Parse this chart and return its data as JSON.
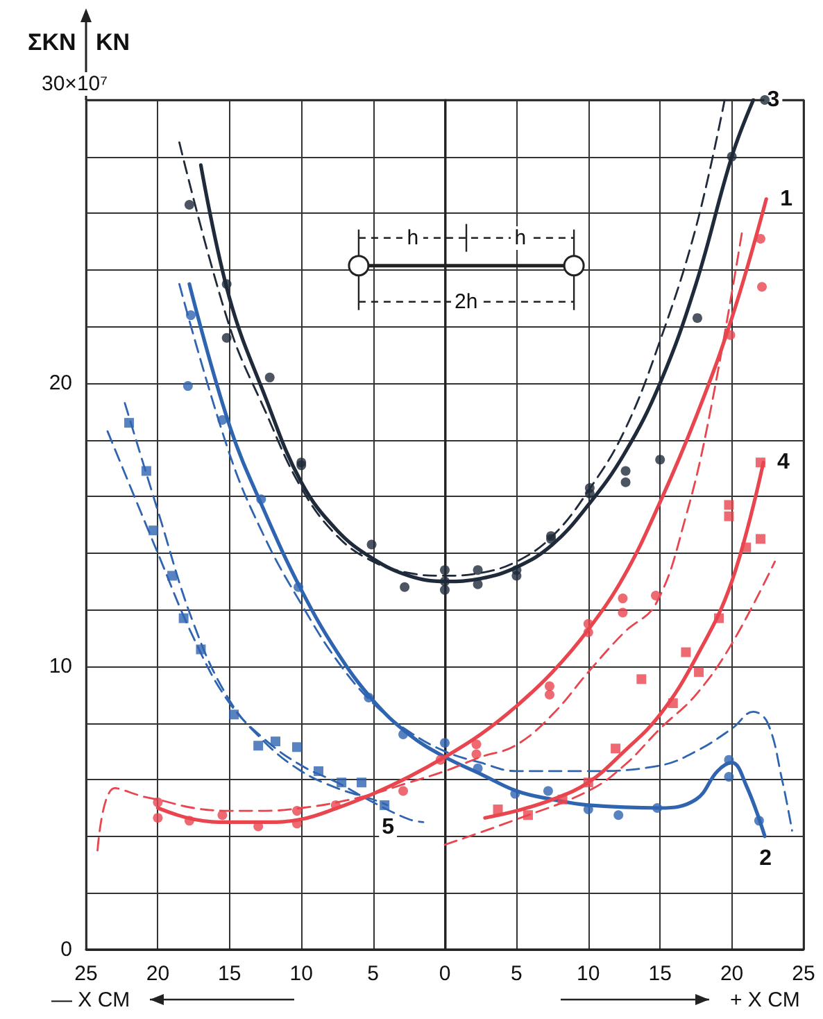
{
  "chart_data": {
    "type": "line",
    "ylabel": "ΣKN  KN",
    "xlabel": "+ X CM",
    "annotations": [
      "h",
      "h",
      "2h",
      "— X CM",
      "30×10⁷"
    ],
    "xlim": [
      -25,
      25
    ],
    "xticks": [
      {
        "value": -25,
        "label": "25"
      },
      {
        "value": -20,
        "label": "20"
      },
      {
        "value": -15,
        "label": "15"
      },
      {
        "value": -10,
        "label": "10"
      },
      {
        "value": -5,
        "label": "5"
      },
      0,
      5,
      10,
      15,
      20,
      25
    ],
    "ylim": [
      0,
      30
    ],
    "yticks": [
      0,
      {
        "value": 2,
        "label": null
      },
      {
        "value": 4,
        "label": null
      },
      {
        "value": 6,
        "label": null
      },
      {
        "value": 8,
        "label": null
      },
      10,
      {
        "value": 12,
        "label": null
      },
      {
        "value": 14,
        "label": null
      },
      {
        "value": 16,
        "label": null
      },
      {
        "value": 18,
        "label": null
      },
      20,
      {
        "value": 22,
        "label": null
      },
      {
        "value": 24,
        "label": null
      },
      {
        "value": 26,
        "label": null
      },
      {
        "value": 28,
        "label": null
      },
      {
        "value": 30,
        "label": null
      }
    ],
    "grid": true,
    "series": [
      {
        "name": "3",
        "type": "line",
        "color": "#1f2a3a",
        "line_style": "solid",
        "marker": "none",
        "x": [
          -17,
          -15,
          -12.5,
          -10,
          -7.5,
          -5,
          -2.5,
          0,
          2.5,
          5,
          7.5,
          10,
          12.5,
          15,
          17.5,
          20,
          21.5
        ],
        "values": [
          27.7,
          23,
          19.5,
          16.5,
          14.8,
          13.8,
          13.2,
          13,
          13.1,
          13.5,
          14.3,
          15.7,
          17.5,
          20,
          23.5,
          28,
          30
        ]
      },
      {
        "type": "line",
        "color": "#1f2a3a",
        "line_style": "dashed",
        "marker": "none",
        "x": [
          -18.5,
          -15,
          -12.5,
          -10,
          -7.5,
          -5,
          -2.5,
          0,
          2.5,
          5,
          7.5,
          10,
          12.5,
          15,
          17.5,
          19.5
        ],
        "values": [
          28.5,
          22,
          19,
          16.3,
          14.6,
          13.7,
          13.3,
          13.2,
          13.3,
          13.7,
          14.6,
          16.2,
          18.3,
          21.5,
          25.5,
          30
        ]
      },
      {
        "type": "scatter",
        "color": "#1f2a3a",
        "marker": "circle",
        "x": [
          -17.8,
          -15.2,
          -15.2,
          -12.2,
          -10,
          -10,
          -5.1,
          -2.8,
          0,
          0,
          0,
          2.3,
          2.3,
          5,
          5,
          7.4,
          7.4,
          10.1,
          10.1,
          12.6,
          12.6,
          15,
          17.6,
          20,
          22.3
        ],
        "values": [
          26.3,
          23.5,
          21.6,
          20.2,
          17.2,
          17.1,
          14.3,
          12.8,
          13.4,
          13,
          12.7,
          13.4,
          12.9,
          13.4,
          13.2,
          14.6,
          14.5,
          16.3,
          16.1,
          16.9,
          16.5,
          17.3,
          22.3,
          28,
          30
        ]
      },
      {
        "name": "2",
        "type": "line",
        "color": "#2f64b0",
        "line_style": "solid",
        "marker": "none",
        "x": [
          -17.8,
          -15,
          -12.5,
          -10,
          -7.5,
          -5,
          -2.5,
          0,
          2.5,
          5,
          7.5,
          10,
          15,
          17.5,
          19,
          20,
          21,
          22.3
        ],
        "values": [
          23.5,
          18.5,
          15.4,
          12.7,
          10.5,
          8.8,
          7.6,
          6.8,
          6.2,
          5.6,
          5.3,
          5.1,
          5,
          5.3,
          6.3,
          6.6,
          5.8,
          4
        ]
      },
      {
        "type": "line",
        "color": "#2f64b0",
        "line_style": "dashed",
        "marker": "none",
        "x": [
          -18.5,
          -15,
          -12.5,
          -10,
          -7.5,
          -5,
          -2.5,
          0,
          2.5,
          5,
          10,
          15,
          17.5,
          20,
          21.5,
          22.5,
          23.5,
          24.2
        ],
        "values": [
          23.5,
          17.5,
          14.5,
          12.2,
          10.2,
          8.7,
          7.7,
          7,
          6.6,
          6.3,
          6.3,
          6.5,
          7,
          7.8,
          8.4,
          8,
          6,
          4.2
        ]
      },
      {
        "type": "scatter",
        "color": "#2f64b0",
        "marker": "circle",
        "x": [
          -17.7,
          -17.9,
          -15.5,
          -12.8,
          -10.2,
          -5.3,
          -2.9,
          0,
          2.3,
          4.9,
          7.2,
          10,
          12.1,
          14.8,
          19.8,
          19.8,
          21.9
        ],
        "values": [
          22.4,
          19.9,
          18.7,
          15.9,
          12.8,
          8.9,
          7.6,
          7.3,
          6.4,
          5.5,
          5.6,
          4.95,
          4.75,
          5,
          6.7,
          6.1,
          4.55
        ]
      },
      {
        "name": "5",
        "type": "line",
        "color": "#2f64b0",
        "line_style": "dashed",
        "marker": "none",
        "x": [
          -22.3,
          -20,
          -17.5,
          -15,
          -12.5,
          -10,
          -7.5,
          -5,
          -4
        ],
        "values": [
          19.3,
          15.5,
          11.5,
          8.8,
          7.3,
          6.3,
          5.7,
          5.3,
          5.1
        ]
      },
      {
        "type": "line",
        "color": "#2f64b0",
        "line_style": "dashed",
        "marker": "none",
        "x": [
          -23.5,
          -20,
          -17.5,
          -15,
          -12.5,
          -10,
          -7.5,
          -5,
          -2.5,
          -1.5
        ],
        "values": [
          18.3,
          14,
          11,
          8.7,
          7.4,
          6.5,
          5.9,
          5.2,
          4.6,
          4.5
        ]
      },
      {
        "type": "scatter",
        "color": "#2f64b0",
        "marker": "square",
        "x": [
          -22,
          -20.8,
          -20.3,
          -19,
          -18.2,
          -17,
          -14.7,
          -13,
          -11.8,
          -10.3,
          -8.8,
          -7.2,
          -5.8,
          -4.2
        ],
        "values": [
          18.6,
          16.9,
          14.8,
          13.2,
          11.7,
          10.6,
          8.3,
          7.2,
          7.35,
          7.15,
          6.3,
          5.9,
          5.9,
          5.1
        ]
      },
      {
        "name": "1",
        "type": "line",
        "color": "#e8454f",
        "line_style": "solid",
        "marker": "none",
        "x": [
          -20,
          -17.5,
          -15,
          -12.5,
          -10,
          -7.5,
          -5,
          -2.5,
          0,
          2.5,
          5,
          7.5,
          10,
          12.5,
          15,
          17.5,
          20,
          22.4
        ],
        "values": [
          5,
          4.6,
          4.5,
          4.5,
          4.6,
          5,
          5.5,
          6.1,
          6.8,
          7.6,
          8.6,
          9.8,
          11.3,
          13.2,
          15.8,
          18.8,
          22.3,
          26.5
        ]
      },
      {
        "type": "line",
        "color": "#e8454f",
        "line_style": "dashed",
        "marker": "none",
        "x": [
          -24.2,
          -23,
          -21,
          -20,
          -17.5,
          -15,
          -12.5,
          -10,
          -7.5,
          -5,
          -2.5,
          0,
          2.5,
          4.9,
          7.5,
          10,
          12.5,
          14.7,
          16.8,
          18.5,
          20.7
        ],
        "values": [
          3.5,
          5.7,
          5.4,
          5.3,
          5,
          4.9,
          4.9,
          5,
          5.2,
          5.5,
          5.9,
          6.3,
          6.8,
          7.2,
          8.3,
          9.8,
          11.2,
          12.2,
          15.3,
          19,
          25.3
        ]
      },
      {
        "type": "scatter",
        "color": "#e8454f",
        "marker": "circle",
        "x": [
          -20,
          -20,
          -17.8,
          -15.5,
          -13,
          -10.3,
          -10.3,
          -7.6,
          -2.9,
          -0.3,
          2.2,
          2.2,
          7.3,
          7.3,
          10,
          10,
          12.4,
          12.4,
          14.7,
          19.9,
          22.1,
          22
        ],
        "values": [
          5.2,
          4.65,
          4.55,
          4.75,
          4.35,
          4.9,
          4.45,
          5.1,
          5.6,
          6.7,
          7.25,
          6.9,
          9.3,
          9,
          11.5,
          11.2,
          12.4,
          11.9,
          12.5,
          21.7,
          23.4,
          25.1
        ]
      },
      {
        "name": "4",
        "type": "line",
        "color": "#e8454f",
        "line_style": "solid",
        "marker": "none",
        "x": [
          2.8,
          5,
          7.5,
          10,
          12.5,
          15,
          17.5,
          20,
          22.2
        ],
        "values": [
          4.65,
          4.9,
          5.3,
          5.9,
          7,
          8.3,
          10.3,
          13,
          17.2
        ]
      },
      {
        "type": "line",
        "color": "#e8454f",
        "line_style": "dashed",
        "marker": "none",
        "x": [
          0,
          5,
          10,
          12.5,
          15,
          17.5,
          20,
          23
        ],
        "values": [
          3.7,
          4.6,
          5.6,
          6.5,
          7.8,
          9,
          10.8,
          13.7
        ]
      },
      {
        "type": "scatter",
        "color": "#e8454f",
        "marker": "square",
        "x": [
          3.7,
          5.8,
          8.2,
          10,
          11.9,
          13.7,
          15.9,
          16.8,
          17.7,
          19.1,
          21,
          22,
          19.8,
          19.8,
          22
        ],
        "values": [
          4.95,
          4.75,
          5.3,
          5.9,
          7.1,
          9.55,
          8.7,
          10.5,
          9.8,
          11.7,
          14.2,
          14.5,
          15.7,
          15.3,
          17.2
        ]
      }
    ]
  }
}
